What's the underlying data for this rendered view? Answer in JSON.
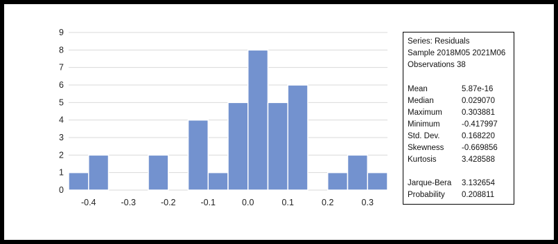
{
  "chart_data": {
    "type": "histogram",
    "bins": [
      {
        "start": -0.45,
        "end": -0.4,
        "count": 1
      },
      {
        "start": -0.4,
        "end": -0.35,
        "count": 2
      },
      {
        "start": -0.35,
        "end": -0.3,
        "count": 0
      },
      {
        "start": -0.3,
        "end": -0.25,
        "count": 0
      },
      {
        "start": -0.25,
        "end": -0.2,
        "count": 2
      },
      {
        "start": -0.2,
        "end": -0.15,
        "count": 0
      },
      {
        "start": -0.15,
        "end": -0.1,
        "count": 4
      },
      {
        "start": -0.1,
        "end": -0.05,
        "count": 1
      },
      {
        "start": -0.05,
        "end": 0.0,
        "count": 5
      },
      {
        "start": 0.0,
        "end": 0.05,
        "count": 8
      },
      {
        "start": 0.05,
        "end": 0.1,
        "count": 5
      },
      {
        "start": 0.1,
        "end": 0.15,
        "count": 6
      },
      {
        "start": 0.15,
        "end": 0.2,
        "count": 0
      },
      {
        "start": 0.2,
        "end": 0.25,
        "count": 1
      },
      {
        "start": 0.25,
        "end": 0.3,
        "count": 2
      },
      {
        "start": 0.3,
        "end": 0.35,
        "count": 1
      }
    ],
    "xlim": [
      -0.45,
      0.35
    ],
    "ylim": [
      0,
      9
    ],
    "x_ticks": [
      "-0.4",
      "-0.3",
      "-0.2",
      "-0.1",
      "0.0",
      "0.1",
      "0.2",
      "0.3"
    ],
    "x_tick_values": [
      -0.4,
      -0.3,
      -0.2,
      -0.1,
      0.0,
      0.1,
      0.2,
      0.3
    ],
    "y_ticks": [
      "0",
      "1",
      "2",
      "3",
      "4",
      "5",
      "6",
      "7",
      "8",
      "9"
    ],
    "grid": "horizontal",
    "bar_color": "#7392cf",
    "bar_edge_color": "#ffffff",
    "grid_color": "#d9d9d9"
  },
  "stats": {
    "series": "Series: Residuals",
    "sample": "Sample 2018M05 2021M06",
    "observations": "Observations 38",
    "rows": [
      {
        "label": "Mean",
        "value": "5.87e-16"
      },
      {
        "label": "Median",
        "value": "0.029070"
      },
      {
        "label": "Maximum",
        "value": "0.303881"
      },
      {
        "label": "Minimum",
        "value": "-0.417997"
      },
      {
        "label": "Std. Dev.",
        "value": "0.168220"
      },
      {
        "label": "Skewness",
        "value": "-0.669856"
      },
      {
        "label": "Kurtosis",
        "value": "3.428588"
      }
    ],
    "jb_rows": [
      {
        "label": "Jarque-Bera",
        "value": "3.132654"
      },
      {
        "label": "Probability",
        "value": "0.208811"
      }
    ]
  }
}
